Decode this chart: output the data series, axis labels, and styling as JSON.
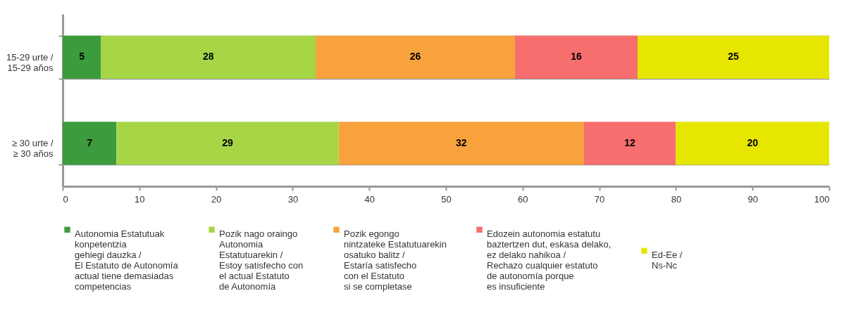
{
  "chart_data": {
    "type": "bar",
    "orientation": "horizontal",
    "stacked": true,
    "data_labels": true,
    "grid": "y",
    "legend": "bottom",
    "categories": [
      "15-29 urte /\n15-29 años",
      "≥ 30 urte /\n≥ 30 años"
    ],
    "xlim": [
      0,
      100
    ],
    "xticks": [
      0,
      10,
      20,
      30,
      40,
      50,
      60,
      70,
      80,
      90,
      100
    ],
    "series": [
      {
        "name": "Autonomia Estatutuak\nkonpetentzia\ngehiegi dauzka /\nEl Estatuto de Autonomía\nactual tiene demasiadas\ncompetencias",
        "color": "#3c9b3c",
        "values": [
          5,
          7
        ]
      },
      {
        "name": "Pozik nago oraingo\nAutonomia\nEstatutuarekin /\nEstoy satisfecho con\nel actual Estatuto\nde Autonomía",
        "color": "#a6d646",
        "values": [
          28,
          29
        ]
      },
      {
        "name": "Pozik egongo\nnintzateke Estatutuarekin\nosatuko balitz /\nEstaría satisfecho\ncon el Estatuto\nsi se completase",
        "color": "#f7a23c",
        "values": [
          26,
          32
        ]
      },
      {
        "name": "Edozein autonomia estatutu\nbaztertzen dut, eskasa delako,\nez delako nahikoa /\nRechazo cualquier estatuto\nde autonomía porque\nes insuficiente",
        "color": "#f76e6e",
        "values": [
          16,
          12
        ]
      },
      {
        "name": "Ed-Ee /\nNs-Nc",
        "color": "#e6e600",
        "values": [
          25,
          20
        ]
      }
    ]
  }
}
